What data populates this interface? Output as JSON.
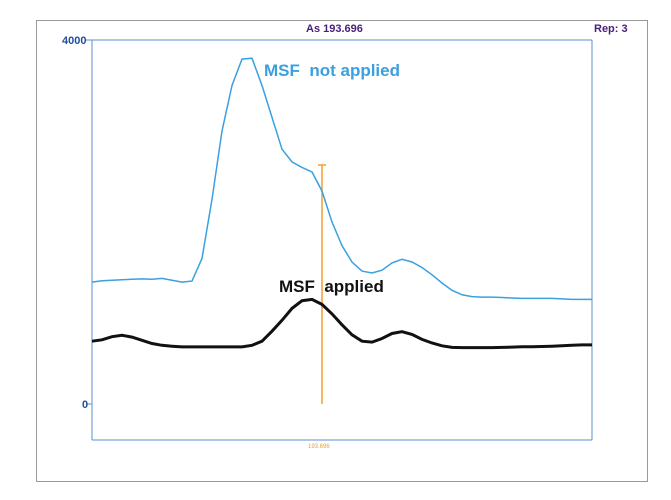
{
  "header": {
    "title": "As 193.696",
    "rep": "Rep: 3"
  },
  "colors": {
    "frame": "#9a9a9a",
    "axis": "#5b8fd0",
    "header_text": "#4b1f7a",
    "y_tick_text": "#1f4e9c",
    "not_applied": "#3aa0e0",
    "applied": "#111111",
    "cursor": "#f0a030"
  },
  "chart_data": {
    "type": "line",
    "title": "As 193.696",
    "ylim": [
      0,
      4000
    ],
    "y_ticks": [
      "0",
      "4000"
    ],
    "cursor": {
      "x": 193.696,
      "label": "193.696"
    },
    "annotations": [
      {
        "text": "MSF  not applied",
        "series": 0
      },
      {
        "text": "MSF  applied",
        "series": 1
      }
    ],
    "x": [
      0,
      2,
      4,
      6,
      8,
      10,
      12,
      14,
      16,
      18,
      20,
      22,
      24,
      26,
      28,
      30,
      32,
      34,
      36,
      38,
      40,
      42,
      44,
      46,
      48,
      50,
      52,
      54,
      56,
      58,
      60,
      62,
      64,
      66,
      68,
      70,
      72,
      74,
      76,
      78,
      80,
      82,
      84,
      86,
      88,
      90,
      92,
      94,
      96,
      98,
      100
    ],
    "series": [
      {
        "values": [
          1340,
          1355,
          1360,
          1365,
          1370,
          1375,
          1370,
          1380,
          1360,
          1340,
          1350,
          1600,
          2250,
          3000,
          3500,
          3790,
          3800,
          3500,
          3150,
          2800,
          2660,
          2600,
          2550,
          2340,
          2000,
          1740,
          1560,
          1460,
          1440,
          1470,
          1550,
          1590,
          1560,
          1500,
          1420,
          1330,
          1250,
          1200,
          1180,
          1175,
          1175,
          1170,
          1165,
          1160,
          1160,
          1160,
          1160,
          1155,
          1150,
          1150,
          1150
        ]
      },
      {
        "values": [
          690,
          705,
          740,
          755,
          735,
          700,
          665,
          645,
          635,
          628,
          628,
          628,
          628,
          628,
          628,
          628,
          645,
          690,
          800,
          920,
          1050,
          1135,
          1150,
          1095,
          990,
          870,
          760,
          690,
          680,
          720,
          775,
          795,
          765,
          710,
          670,
          640,
          622,
          620,
          620,
          620,
          620,
          622,
          625,
          630,
          630,
          632,
          635,
          640,
          645,
          650,
          650
        ]
      }
    ]
  }
}
